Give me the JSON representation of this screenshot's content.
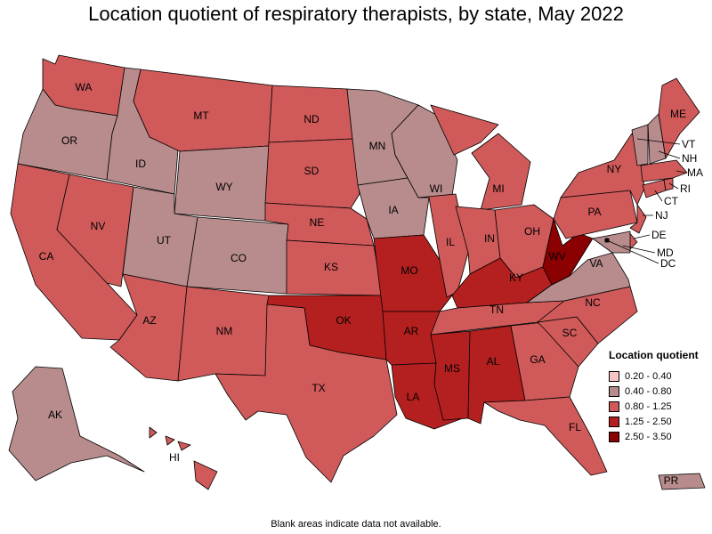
{
  "title": "Location quotient of respiratory therapists, by state, May 2022",
  "footnote": "Blank areas indicate data not available.",
  "legend": {
    "title": "Location quotient",
    "items": [
      {
        "label": "0.20 - 0.40",
        "color": "#f6c5c5"
      },
      {
        "label": "0.40 - 0.80",
        "color": "#b88c8c"
      },
      {
        "label": "0.80 - 1.25",
        "color": "#d05a5a"
      },
      {
        "label": "1.25 - 2.50",
        "color": "#b3201f"
      },
      {
        "label": "2.50 - 3.50",
        "color": "#8b0000"
      }
    ]
  },
  "states": [
    {
      "abbr": "WA",
      "bin": 2
    },
    {
      "abbr": "OR",
      "bin": 1
    },
    {
      "abbr": "CA",
      "bin": 2
    },
    {
      "abbr": "ID",
      "bin": 1
    },
    {
      "abbr": "NV",
      "bin": 2
    },
    {
      "abbr": "MT",
      "bin": 2
    },
    {
      "abbr": "WY",
      "bin": 1
    },
    {
      "abbr": "UT",
      "bin": 1
    },
    {
      "abbr": "CO",
      "bin": 1
    },
    {
      "abbr": "AZ",
      "bin": 2
    },
    {
      "abbr": "NM",
      "bin": 2
    },
    {
      "abbr": "ND",
      "bin": 2
    },
    {
      "abbr": "SD",
      "bin": 2
    },
    {
      "abbr": "NE",
      "bin": 2
    },
    {
      "abbr": "KS",
      "bin": 2
    },
    {
      "abbr": "OK",
      "bin": 3
    },
    {
      "abbr": "TX",
      "bin": 2
    },
    {
      "abbr": "MN",
      "bin": 1
    },
    {
      "abbr": "IA",
      "bin": 1
    },
    {
      "abbr": "MO",
      "bin": 3
    },
    {
      "abbr": "AR",
      "bin": 3
    },
    {
      "abbr": "LA",
      "bin": 3
    },
    {
      "abbr": "WI",
      "bin": 1
    },
    {
      "abbr": "IL",
      "bin": 2
    },
    {
      "abbr": "MI",
      "bin": 2
    },
    {
      "abbr": "IN",
      "bin": 2
    },
    {
      "abbr": "OH",
      "bin": 2
    },
    {
      "abbr": "KY",
      "bin": 3
    },
    {
      "abbr": "TN",
      "bin": 2
    },
    {
      "abbr": "MS",
      "bin": 3
    },
    {
      "abbr": "AL",
      "bin": 3
    },
    {
      "abbr": "GA",
      "bin": 2
    },
    {
      "abbr": "FL",
      "bin": 2
    },
    {
      "abbr": "SC",
      "bin": 2
    },
    {
      "abbr": "NC",
      "bin": 2
    },
    {
      "abbr": "VA",
      "bin": 1
    },
    {
      "abbr": "WV",
      "bin": 4
    },
    {
      "abbr": "PA",
      "bin": 2
    },
    {
      "abbr": "NY",
      "bin": 2
    },
    {
      "abbr": "NJ",
      "bin": 2
    },
    {
      "abbr": "DE",
      "bin": 2
    },
    {
      "abbr": "MD",
      "bin": 1
    },
    {
      "abbr": "DC",
      "bin": 1
    },
    {
      "abbr": "CT",
      "bin": 2
    },
    {
      "abbr": "RI",
      "bin": 2
    },
    {
      "abbr": "MA",
      "bin": 2
    },
    {
      "abbr": "VT",
      "bin": 1
    },
    {
      "abbr": "NH",
      "bin": 1
    },
    {
      "abbr": "ME",
      "bin": 2
    },
    {
      "abbr": "AK",
      "bin": 1
    },
    {
      "abbr": "HI",
      "bin": 2
    },
    {
      "abbr": "PR",
      "bin": 1
    }
  ]
}
